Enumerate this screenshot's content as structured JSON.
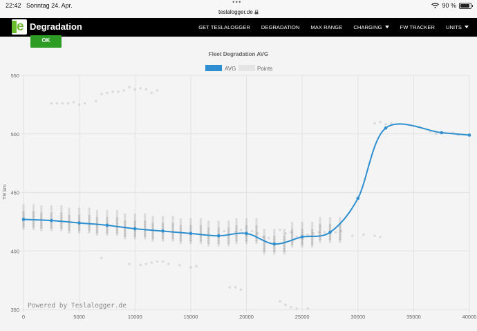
{
  "status_bar": {
    "time": "22:42",
    "date": "Sonntag 24. Apr.",
    "url": "teslalogger.de",
    "battery": "90 %",
    "battery_level": 0.9
  },
  "navbar": {
    "brand": "Degradation",
    "items": [
      {
        "label": "GET TESLALOGGER",
        "dropdown": false
      },
      {
        "label": "DEGRADATION",
        "dropdown": false
      },
      {
        "label": "MAX RANGE",
        "dropdown": false
      },
      {
        "label": "CHARGING",
        "dropdown": true
      },
      {
        "label": "FW TRACKER",
        "dropdown": false
      },
      {
        "label": "UNITS",
        "dropdown": true
      }
    ]
  },
  "ok_button": "OK",
  "watermark": "Powered by Teslalogger.de",
  "colors": {
    "avg": "#2d8fd0",
    "points": "#999999",
    "ok": "#2c9c24",
    "navbar": "#000000",
    "logo": "#6cbb2e"
  },
  "chart_data": {
    "type": "line",
    "title": "Fleet Degradation AVG",
    "xlabel": "",
    "ylabel": "TR km",
    "xlim": [
      0,
      40000
    ],
    "ylim": [
      350,
      550
    ],
    "x_ticks": [
      0,
      5000,
      10000,
      15000,
      20000,
      25000,
      30000,
      35000,
      40000
    ],
    "y_ticks": [
      350,
      400,
      450,
      500,
      550
    ],
    "grid": true,
    "legend_placement": "top-center",
    "series": [
      {
        "name": "AVG",
        "type": "line",
        "color": "#2d8fd0",
        "points": [
          [
            0,
            427
          ],
          [
            2500,
            426
          ],
          [
            5000,
            424
          ],
          [
            7500,
            422
          ],
          [
            10000,
            419
          ],
          [
            12500,
            417
          ],
          [
            15000,
            415
          ],
          [
            17500,
            413
          ],
          [
            20000,
            415
          ],
          [
            22500,
            406
          ],
          [
            25000,
            412
          ],
          [
            27500,
            416
          ],
          [
            30000,
            445
          ],
          [
            32500,
            505
          ],
          [
            37500,
            501
          ],
          [
            40000,
            499
          ]
        ]
      },
      {
        "name": "Points",
        "type": "scatter",
        "color": "#999999",
        "points": [
          [
            2500,
            526
          ],
          [
            3000,
            526
          ],
          [
            3500,
            526
          ],
          [
            4000,
            526
          ],
          [
            4500,
            527
          ],
          [
            5000,
            525
          ],
          [
            5500,
            526
          ],
          [
            6500,
            528
          ],
          [
            7000,
            534
          ],
          [
            7500,
            535
          ],
          [
            8000,
            536
          ],
          [
            8500,
            536
          ],
          [
            9000,
            537
          ],
          [
            9500,
            540
          ],
          [
            10000,
            538
          ],
          [
            10500,
            539
          ],
          [
            11000,
            538
          ],
          [
            11500,
            535
          ],
          [
            12000,
            537
          ],
          [
            9500,
            389
          ],
          [
            10500,
            388
          ],
          [
            11000,
            389
          ],
          [
            11500,
            390
          ],
          [
            12000,
            391
          ],
          [
            12500,
            391
          ],
          [
            13000,
            389
          ],
          [
            14000,
            388
          ],
          [
            15000,
            386
          ],
          [
            15500,
            387
          ],
          [
            7000,
            394
          ],
          [
            18500,
            369
          ],
          [
            19000,
            369
          ],
          [
            19500,
            367
          ],
          [
            23000,
            357
          ],
          [
            23500,
            354
          ],
          [
            24000,
            352
          ],
          [
            24500,
            351
          ],
          [
            25500,
            351
          ],
          [
            29500,
            413
          ],
          [
            30500,
            414
          ],
          [
            31500,
            413
          ],
          [
            32000,
            412
          ],
          [
            31500,
            509
          ],
          [
            32000,
            510
          ],
          [
            32500,
            508
          ],
          [
            33000,
            509
          ],
          [
            35500,
            506
          ],
          [
            36500,
            502
          ],
          [
            37000,
            500
          ],
          [
            38500,
            501
          ],
          [
            39000,
            499
          ],
          [
            40000,
            499
          ],
          [
            18000,
            417
          ],
          [
            19000,
            416
          ],
          [
            20000,
            414
          ],
          [
            21000,
            415
          ],
          [
            21500,
            412
          ],
          [
            22000,
            411
          ],
          [
            22500,
            406
          ],
          [
            23000,
            418
          ],
          [
            23500,
            415
          ],
          [
            24000,
            416
          ],
          [
            24500,
            412
          ],
          [
            25000,
            413
          ],
          [
            25500,
            414
          ],
          [
            26000,
            415
          ],
          [
            26500,
            416
          ],
          [
            27000,
            416
          ],
          [
            27500,
            416
          ],
          [
            28000,
            416
          ],
          [
            28500,
            417
          ],
          [
            20500,
            417
          ],
          [
            19500,
            418
          ]
        ]
      }
    ]
  }
}
